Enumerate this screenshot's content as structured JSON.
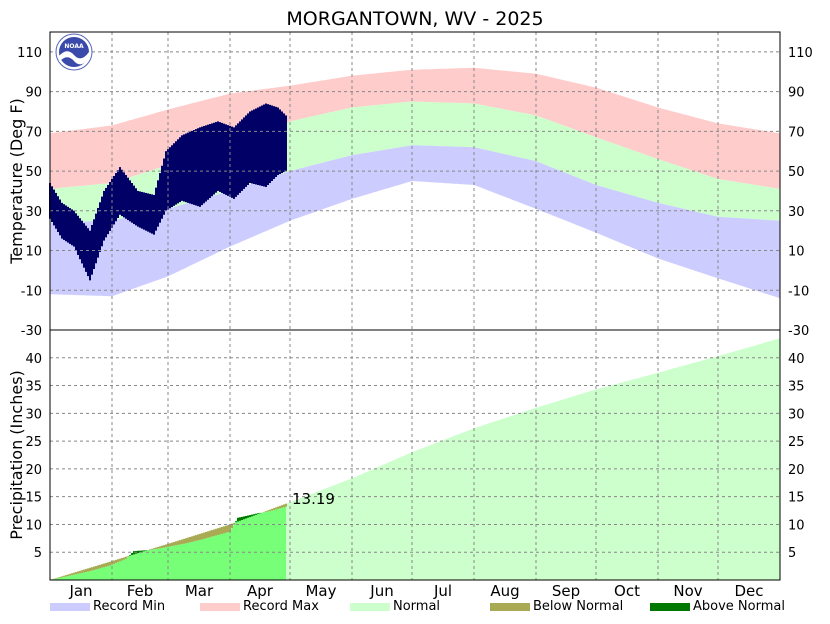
{
  "chart_data": [
    {
      "type": "area",
      "panel": "temperature",
      "title": "MORGANTOWN, WV - 2025",
      "ylabel": "Temperature (Deg F)",
      "ylim": [
        -30,
        120
      ],
      "yticks": [
        -30,
        -10,
        10,
        30,
        50,
        70,
        90,
        110
      ],
      "xlim": [
        0,
        365
      ],
      "grid": true,
      "normal_high": [
        {
          "day": 0,
          "value": 41
        },
        {
          "day": 31,
          "value": 44
        },
        {
          "day": 59,
          "value": 53
        },
        {
          "day": 90,
          "value": 65
        },
        {
          "day": 120,
          "value": 75
        },
        {
          "day": 151,
          "value": 82
        },
        {
          "day": 181,
          "value": 85
        },
        {
          "day": 212,
          "value": 84
        },
        {
          "day": 243,
          "value": 78
        },
        {
          "day": 273,
          "value": 67
        },
        {
          "day": 304,
          "value": 56
        },
        {
          "day": 334,
          "value": 46
        },
        {
          "day": 365,
          "value": 41
        }
      ],
      "normal_low": [
        {
          "day": 0,
          "value": 24
        },
        {
          "day": 31,
          "value": 25
        },
        {
          "day": 59,
          "value": 31
        },
        {
          "day": 90,
          "value": 40
        },
        {
          "day": 120,
          "value": 50
        },
        {
          "day": 151,
          "value": 58
        },
        {
          "day": 181,
          "value": 63
        },
        {
          "day": 212,
          "value": 62
        },
        {
          "day": 243,
          "value": 55
        },
        {
          "day": 273,
          "value": 43
        },
        {
          "day": 304,
          "value": 34
        },
        {
          "day": 334,
          "value": 27
        },
        {
          "day": 365,
          "value": 25
        }
      ],
      "record_max": [
        {
          "day": 0,
          "value": 69
        },
        {
          "day": 31,
          "value": 73
        },
        {
          "day": 59,
          "value": 81
        },
        {
          "day": 90,
          "value": 89
        },
        {
          "day": 120,
          "value": 93
        },
        {
          "day": 151,
          "value": 98
        },
        {
          "day": 181,
          "value": 101
        },
        {
          "day": 212,
          "value": 102
        },
        {
          "day": 243,
          "value": 99
        },
        {
          "day": 273,
          "value": 92
        },
        {
          "day": 304,
          "value": 82
        },
        {
          "day": 334,
          "value": 74
        },
        {
          "day": 365,
          "value": 69
        }
      ],
      "record_min": [
        {
          "day": 0,
          "value": -12
        },
        {
          "day": 31,
          "value": -13
        },
        {
          "day": 59,
          "value": -3
        },
        {
          "day": 90,
          "value": 12
        },
        {
          "day": 120,
          "value": 25
        },
        {
          "day": 151,
          "value": 36
        },
        {
          "day": 181,
          "value": 45
        },
        {
          "day": 212,
          "value": 43
        },
        {
          "day": 243,
          "value": 31
        },
        {
          "day": 273,
          "value": 19
        },
        {
          "day": 304,
          "value": 6
        },
        {
          "day": 334,
          "value": -4
        },
        {
          "day": 365,
          "value": -14
        }
      ],
      "observed_2025": {
        "last_day": 118,
        "high": [
          {
            "day": 0,
            "value": 44
          },
          {
            "day": 6,
            "value": 34
          },
          {
            "day": 12,
            "value": 30
          },
          {
            "day": 20,
            "value": 20
          },
          {
            "day": 27,
            "value": 40
          },
          {
            "day": 35,
            "value": 52
          },
          {
            "day": 44,
            "value": 40
          },
          {
            "day": 52,
            "value": 38
          },
          {
            "day": 58,
            "value": 60
          },
          {
            "day": 66,
            "value": 68
          },
          {
            "day": 75,
            "value": 72
          },
          {
            "day": 84,
            "value": 75
          },
          {
            "day": 92,
            "value": 72
          },
          {
            "day": 100,
            "value": 80
          },
          {
            "day": 108,
            "value": 84
          },
          {
            "day": 114,
            "value": 82
          },
          {
            "day": 118,
            "value": 78
          }
        ],
        "low": [
          {
            "day": 0,
            "value": 26
          },
          {
            "day": 6,
            "value": 16
          },
          {
            "day": 12,
            "value": 12
          },
          {
            "day": 20,
            "value": -5
          },
          {
            "day": 27,
            "value": 15
          },
          {
            "day": 35,
            "value": 28
          },
          {
            "day": 44,
            "value": 22
          },
          {
            "day": 52,
            "value": 18
          },
          {
            "day": 58,
            "value": 30
          },
          {
            "day": 66,
            "value": 35
          },
          {
            "day": 75,
            "value": 32
          },
          {
            "day": 84,
            "value": 40
          },
          {
            "day": 92,
            "value": 36
          },
          {
            "day": 100,
            "value": 44
          },
          {
            "day": 108,
            "value": 42
          },
          {
            "day": 114,
            "value": 48
          },
          {
            "day": 118,
            "value": 50
          }
        ]
      }
    },
    {
      "type": "area",
      "panel": "precipitation",
      "ylabel": "Precipitation (Inches)",
      "ylim": [
        0,
        45
      ],
      "yticks": [
        5,
        10,
        15,
        20,
        25,
        30,
        35,
        40
      ],
      "xlim": [
        0,
        365
      ],
      "grid": true,
      "normal_cumulative": [
        {
          "day": 0,
          "value": 0
        },
        {
          "day": 31,
          "value": 3.4
        },
        {
          "day": 59,
          "value": 6.5
        },
        {
          "day": 90,
          "value": 10.0
        },
        {
          "day": 120,
          "value": 14.0
        },
        {
          "day": 151,
          "value": 18.3
        },
        {
          "day": 181,
          "value": 23.0
        },
        {
          "day": 212,
          "value": 27.3
        },
        {
          "day": 243,
          "value": 31.0
        },
        {
          "day": 273,
          "value": 34.3
        },
        {
          "day": 304,
          "value": 37.3
        },
        {
          "day": 334,
          "value": 40.3
        },
        {
          "day": 365,
          "value": 43.5
        }
      ],
      "observed_cumulative": [
        {
          "day": 0,
          "value": 0
        },
        {
          "day": 10,
          "value": 0.8
        },
        {
          "day": 20,
          "value": 1.6
        },
        {
          "day": 30,
          "value": 2.6
        },
        {
          "day": 38,
          "value": 3.8
        },
        {
          "day": 42,
          "value": 5.2
        },
        {
          "day": 50,
          "value": 5.4
        },
        {
          "day": 58,
          "value": 5.9
        },
        {
          "day": 68,
          "value": 6.6
        },
        {
          "day": 76,
          "value": 7.3
        },
        {
          "day": 84,
          "value": 8.1
        },
        {
          "day": 90,
          "value": 8.7
        },
        {
          "day": 94,
          "value": 11.2
        },
        {
          "day": 104,
          "value": 12.0
        },
        {
          "day": 110,
          "value": 12.4
        },
        {
          "day": 118,
          "value": 13.19
        }
      ],
      "annotation": "13.19"
    }
  ],
  "months": [
    "Jan",
    "Feb",
    "Mar",
    "Apr",
    "May",
    "Jun",
    "Jul",
    "Aug",
    "Sep",
    "Oct",
    "Nov",
    "Dec"
  ],
  "month_start_days": [
    0,
    31,
    59,
    90,
    120,
    151,
    181,
    212,
    243,
    273,
    304,
    334
  ],
  "legend": [
    {
      "label": "Record Min",
      "color": "#ccccff"
    },
    {
      "label": "Record Max",
      "color": "#ffcccc"
    },
    {
      "label": "Normal",
      "color": "#ccffcc"
    },
    {
      "label": "Below Normal",
      "color": "#aaaa55"
    },
    {
      "label": "Above Normal",
      "color": "#007700"
    }
  ],
  "colors": {
    "record_max": "#ffcccc",
    "record_min": "#ccccff",
    "normal": "#ccffcc",
    "observed_line": "#000066",
    "precip_normal": "#ccffcc",
    "precip_observed": "#77ff77",
    "below_normal": "#aaaa55",
    "above_normal": "#007700",
    "grid": "#888888"
  },
  "logo": {
    "text": "NOAA",
    "icon": "noaa-logo-icon"
  }
}
